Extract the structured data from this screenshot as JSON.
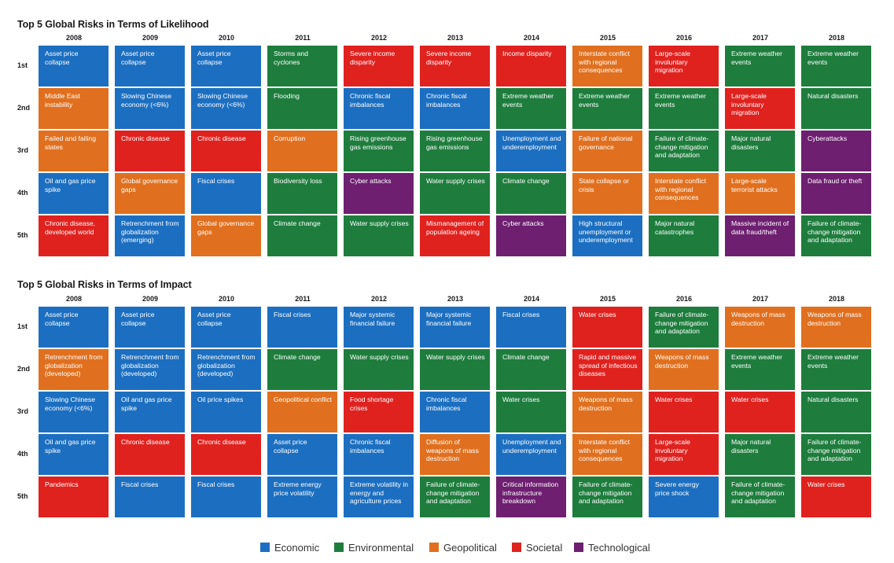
{
  "colors": {
    "Economic": "#1c6fc0",
    "Environmental": "#1e7d3d",
    "Geopolitical": "#e0701f",
    "Societal": "#e0221f",
    "Technological": "#6e1f70"
  },
  "ranks": [
    "1st",
    "2nd",
    "3rd",
    "4th",
    "5th"
  ],
  "chart_data": [
    {
      "type": "table",
      "title": "Top 5 Global Risks in Terms of Likelihood",
      "years": [
        "2008",
        "2009",
        "2010",
        "2011",
        "2012",
        "2013",
        "2014",
        "2015",
        "2016",
        "2017",
        "2018"
      ],
      "columns": [
        [
          [
            "Asset price collapse",
            "Economic"
          ],
          [
            "Middle East instability",
            "Geopolitical"
          ],
          [
            "Failed and failing states",
            "Geopolitical"
          ],
          [
            "Oil and gas price spike",
            "Economic"
          ],
          [
            "Chronic disease, developed world",
            "Societal"
          ]
        ],
        [
          [
            "Asset price collapse",
            "Economic"
          ],
          [
            "Slowing Chinese economy (<6%)",
            "Economic"
          ],
          [
            "Chronic disease",
            "Societal"
          ],
          [
            "Global governance gaps",
            "Geopolitical"
          ],
          [
            "Retrenchment from globalization (emerging)",
            "Economic"
          ]
        ],
        [
          [
            "Asset price collapse",
            "Economic"
          ],
          [
            "Slowing Chinese economy (<6%)",
            "Economic"
          ],
          [
            "Chronic disease",
            "Societal"
          ],
          [
            "Fiscal crises",
            "Economic"
          ],
          [
            "Global governance gaps",
            "Geopolitical"
          ]
        ],
        [
          [
            "Storms and cyclones",
            "Environmental"
          ],
          [
            "Flooding",
            "Environmental"
          ],
          [
            "Corruption",
            "Geopolitical"
          ],
          [
            "Biodiversity loss",
            "Environmental"
          ],
          [
            "Climate change",
            "Environmental"
          ]
        ],
        [
          [
            "Severe income disparity",
            "Societal"
          ],
          [
            "Chronic fiscal imbalances",
            "Economic"
          ],
          [
            "Rising greenhouse gas emissions",
            "Environmental"
          ],
          [
            "Cyber attacks",
            "Technological"
          ],
          [
            "Water supply crises",
            "Environmental"
          ]
        ],
        [
          [
            "Severe income disparity",
            "Societal"
          ],
          [
            "Chronic fiscal imbalances",
            "Economic"
          ],
          [
            "Rising greenhouse gas emissions",
            "Environmental"
          ],
          [
            "Water supply crises",
            "Environmental"
          ],
          [
            "Mismanagement of population ageing",
            "Societal"
          ]
        ],
        [
          [
            "Income disparity",
            "Societal"
          ],
          [
            "Extreme weather events",
            "Environmental"
          ],
          [
            "Unemployment and underemployment",
            "Economic"
          ],
          [
            "Climate change",
            "Environmental"
          ],
          [
            "Cyber attacks",
            "Technological"
          ]
        ],
        [
          [
            "Interstate conflict with regional consequences",
            "Geopolitical"
          ],
          [
            "Extreme weather events",
            "Environmental"
          ],
          [
            "Failure of national governance",
            "Geopolitical"
          ],
          [
            "State collapse or crisis",
            "Geopolitical"
          ],
          [
            "High structural unemployment or underemployment",
            "Economic"
          ]
        ],
        [
          [
            "Large-scale involuntary migration",
            "Societal"
          ],
          [
            "Extreme weather events",
            "Environmental"
          ],
          [
            "Failure of climate-change mitigation and adaptation",
            "Environmental"
          ],
          [
            "Interstate conflict with regional consequences",
            "Geopolitical"
          ],
          [
            "Major natural catastrophes",
            "Environmental"
          ]
        ],
        [
          [
            "Extreme weather events",
            "Environmental"
          ],
          [
            "Large-scale involuntary migration",
            "Societal"
          ],
          [
            "Major natural disasters",
            "Environmental"
          ],
          [
            "Large-scale terrorist attacks",
            "Geopolitical"
          ],
          [
            "Massive incident of data fraud/theft",
            "Technological"
          ]
        ],
        [
          [
            "Extreme weather events",
            "Environmental"
          ],
          [
            "Natural disasters",
            "Environmental"
          ],
          [
            "Cyberattacks",
            "Technological"
          ],
          [
            "Data fraud or theft",
            "Technological"
          ],
          [
            "Failure of climate-change mitigation and adaptation",
            "Environmental"
          ]
        ]
      ]
    },
    {
      "type": "table",
      "title": "Top 5 Global Risks in Terms of Impact",
      "years": [
        "2008",
        "2009",
        "2010",
        "2011",
        "2012",
        "2013",
        "2014",
        "2015",
        "2016",
        "2017",
        "2018"
      ],
      "columns": [
        [
          [
            "Asset price collapse",
            "Economic"
          ],
          [
            "Retrenchment from globalization (developed)",
            "Geopolitical"
          ],
          [
            "Slowing Chinese economy (<6%)",
            "Economic"
          ],
          [
            "Oil and gas price spike",
            "Economic"
          ],
          [
            "Pandemics",
            "Societal"
          ]
        ],
        [
          [
            "Asset price collapse",
            "Economic"
          ],
          [
            "Retrenchment from globalization (developed)",
            "Economic"
          ],
          [
            "Oil and gas price spike",
            "Economic"
          ],
          [
            "Chronic disease",
            "Societal"
          ],
          [
            "Fiscal crises",
            "Economic"
          ]
        ],
        [
          [
            "Asset price collapse",
            "Economic"
          ],
          [
            "Retrenchment from globalization (developed)",
            "Economic"
          ],
          [
            "Oil price spikes",
            "Economic"
          ],
          [
            "Chronic disease",
            "Societal"
          ],
          [
            "Fiscal crises",
            "Economic"
          ]
        ],
        [
          [
            "Fiscal crises",
            "Economic"
          ],
          [
            "Climate change",
            "Environmental"
          ],
          [
            "Geopolitical conflict",
            "Geopolitical"
          ],
          [
            "Asset price collapse",
            "Economic"
          ],
          [
            "Extreme energy price volatility",
            "Economic"
          ]
        ],
        [
          [
            "Major systemic financial failure",
            "Economic"
          ],
          [
            "Water supply crises",
            "Environmental"
          ],
          [
            "Food shortage crises",
            "Societal"
          ],
          [
            "Chronic fiscal imbalances",
            "Economic"
          ],
          [
            "Extreme volatility in energy and agriculture prices",
            "Economic"
          ]
        ],
        [
          [
            "Major systemic financial failure",
            "Economic"
          ],
          [
            "Water supply crises",
            "Environmental"
          ],
          [
            "Chronic fiscal imbalances",
            "Economic"
          ],
          [
            "Diffusion of weapons of mass destruction",
            "Geopolitical"
          ],
          [
            "Failure of climate-change mitigation and adaptation",
            "Environmental"
          ]
        ],
        [
          [
            "Fiscal crises",
            "Economic"
          ],
          [
            "Climate change",
            "Environmental"
          ],
          [
            "Water crises",
            "Environmental"
          ],
          [
            "Unemployment and underemployment",
            "Economic"
          ],
          [
            "Critical information infrastructure breakdown",
            "Technological"
          ]
        ],
        [
          [
            "Water crises",
            "Societal"
          ],
          [
            "Rapid and massive spread of infectious diseases",
            "Societal"
          ],
          [
            "Weapons of mass destruction",
            "Geopolitical"
          ],
          [
            "Interstate conflict with regional consequences",
            "Geopolitical"
          ],
          [
            "Failure of climate-change mitigation and adaptation",
            "Environmental"
          ]
        ],
        [
          [
            "Failure of climate-change mitigation and adaptation",
            "Environmental"
          ],
          [
            "Weapons of mass destruction",
            "Geopolitical"
          ],
          [
            "Water crises",
            "Societal"
          ],
          [
            "Large-scale involuntary migration",
            "Societal"
          ],
          [
            "Severe energy price shock",
            "Economic"
          ]
        ],
        [
          [
            "Weapons of mass destruction",
            "Geopolitical"
          ],
          [
            "Extreme weather events",
            "Environmental"
          ],
          [
            "Water crises",
            "Societal"
          ],
          [
            "Major natural disasters",
            "Environmental"
          ],
          [
            "Failure of climate-change mitigation and adaptation",
            "Environmental"
          ]
        ],
        [
          [
            "Weapons of mass destruction",
            "Geopolitical"
          ],
          [
            "Extreme weather events",
            "Environmental"
          ],
          [
            "Natural disasters",
            "Environmental"
          ],
          [
            "Failure of climate-change mitigation and adaptation",
            "Environmental"
          ],
          [
            "Water crises",
            "Societal"
          ]
        ]
      ]
    }
  ],
  "legend": [
    {
      "label": "Economic",
      "category": "Economic"
    },
    {
      "label": "Environmental",
      "category": "Environmental"
    },
    {
      "label": "Geopolitical",
      "category": "Geopolitical"
    },
    {
      "label": "Societal",
      "category": "Societal"
    },
    {
      "label": "Technological",
      "category": "Technological"
    }
  ]
}
